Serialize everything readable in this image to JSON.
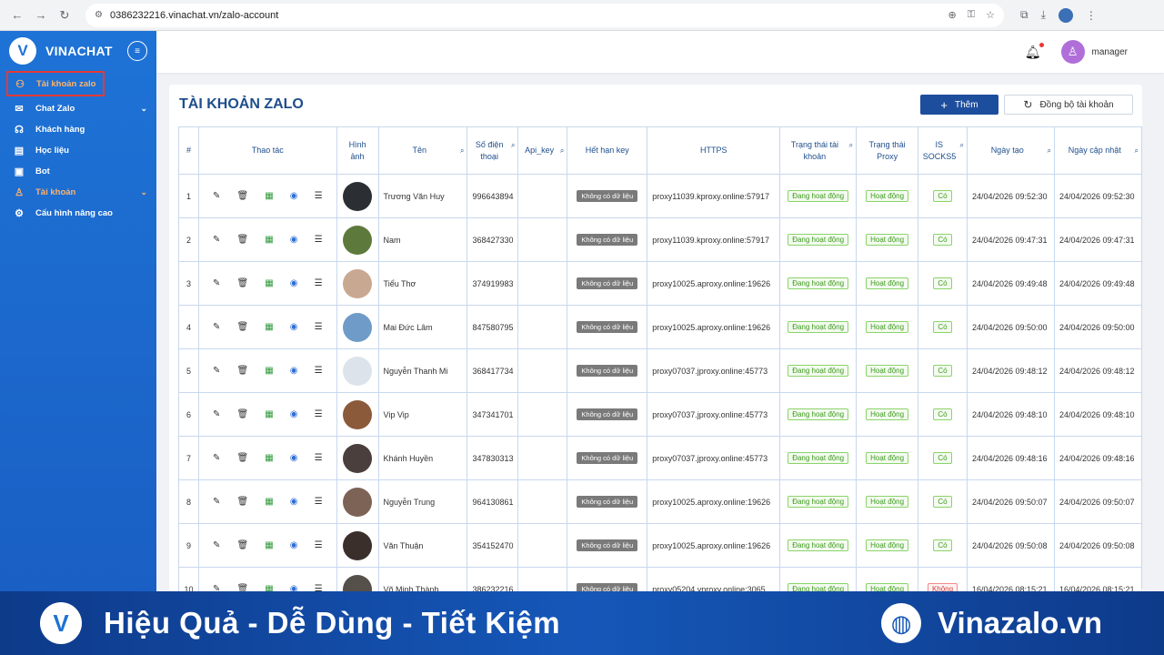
{
  "browser": {
    "url": "0386232216.vinachat.vn/zalo-account"
  },
  "sidebar": {
    "brand": "VINACHAT",
    "items": [
      {
        "label": "Tài khoản zalo",
        "icon": "user-group-icon"
      },
      {
        "label": "Chat Zalo",
        "icon": "chat-icon"
      },
      {
        "label": "Khách hàng",
        "icon": "headset-icon"
      },
      {
        "label": "Học liệu",
        "icon": "document-icon"
      },
      {
        "label": "Bot",
        "icon": "bot-icon"
      },
      {
        "label": "Tài khoản",
        "icon": "user-icon"
      },
      {
        "label": "Cấu hình nâng cao",
        "icon": "gear-icon"
      }
    ]
  },
  "header": {
    "user_name": "manager"
  },
  "page": {
    "title": "TÀI KHOẢN ZALO",
    "add_label": "Thêm",
    "sync_label": "Đồng bộ tài khoản"
  },
  "table": {
    "columns": [
      "#",
      "Thao tác",
      "Hình ảnh",
      "Tên",
      "Số điện thoại",
      "Api_key",
      "Hết hạn key",
      "HTTPS",
      "Trạng thái tài khoản",
      "Trạng thái Proxy",
      "IS SOCKS5",
      "Ngày tạo",
      "Ngày cập nhật"
    ],
    "rows": [
      {
        "no": "1",
        "name": "Trương Văn Huy",
        "phone": "996643894",
        "api_key": "",
        "key_expiry": "Không có dữ liệu",
        "https": "proxy11039.kproxy.online:57917",
        "account_status": "Đang hoạt động",
        "proxy_status": "Hoạt động",
        "socks5": "Có",
        "created": "24/04/2026 09:52:30",
        "updated": "24/04/2026 09:52:30",
        "avatar_color": "#2b2f33"
      },
      {
        "no": "2",
        "name": "Nam",
        "phone": "368427330",
        "api_key": "",
        "key_expiry": "Không có dữ liệu",
        "https": "proxy11039.kproxy.online:57917",
        "account_status": "Đang hoạt động",
        "proxy_status": "Hoạt động",
        "socks5": "Có",
        "created": "24/04/2026 09:47:31",
        "updated": "24/04/2026 09:47:31",
        "avatar_color": "#5d7a3c"
      },
      {
        "no": "3",
        "name": "Tiểu Thơ",
        "phone": "374919983",
        "api_key": "",
        "key_expiry": "Không có dữ liệu",
        "https": "proxy10025.aproxy.online:19626",
        "account_status": "Đang hoạt động",
        "proxy_status": "Hoạt động",
        "socks5": "Có",
        "created": "24/04/2026 09:49:48",
        "updated": "24/04/2026 09:49:48",
        "avatar_color": "#c9a892"
      },
      {
        "no": "4",
        "name": "Mai Đức Lâm",
        "phone": "847580795",
        "api_key": "",
        "key_expiry": "Không có dữ liệu",
        "https": "proxy10025.aproxy.online:19626",
        "account_status": "Đang hoạt động",
        "proxy_status": "Hoạt động",
        "socks5": "Có",
        "created": "24/04/2026 09:50:00",
        "updated": "24/04/2026 09:50:00",
        "avatar_color": "#6f9bc8"
      },
      {
        "no": "5",
        "name": "Nguyễn Thanh Mi",
        "phone": "368417734",
        "api_key": "",
        "key_expiry": "Không có dữ liệu",
        "https": "proxy07037.jproxy.online:45773",
        "account_status": "Đang hoạt động",
        "proxy_status": "Hoạt động",
        "socks5": "Có",
        "created": "24/04/2026 09:48:12",
        "updated": "24/04/2026 09:48:12",
        "avatar_color": "#dde3ea"
      },
      {
        "no": "6",
        "name": "Vip Vip",
        "phone": "347341701",
        "api_key": "",
        "key_expiry": "Không có dữ liệu",
        "https": "proxy07037.jproxy.online:45773",
        "account_status": "Đang hoạt động",
        "proxy_status": "Hoạt động",
        "socks5": "Có",
        "created": "24/04/2026 09:48:10",
        "updated": "24/04/2026 09:48:10",
        "avatar_color": "#8a5a3a"
      },
      {
        "no": "7",
        "name": "Khánh Huyền",
        "phone": "347830313",
        "api_key": "",
        "key_expiry": "Không có dữ liệu",
        "https": "proxy07037.jproxy.online:45773",
        "account_status": "Đang hoạt động",
        "proxy_status": "Hoạt động",
        "socks5": "Có",
        "created": "24/04/2026 09:48:16",
        "updated": "24/04/2026 09:48:16",
        "avatar_color": "#4a3f3c"
      },
      {
        "no": "8",
        "name": "Nguyễn Trung",
        "phone": "964130861",
        "api_key": "",
        "key_expiry": "Không có dữ liệu",
        "https": "proxy10025.aproxy.online:19626",
        "account_status": "Đang hoạt động",
        "proxy_status": "Hoạt động",
        "socks5": "Có",
        "created": "24/04/2026 09:50:07",
        "updated": "24/04/2026 09:50:07",
        "avatar_color": "#7c6356"
      },
      {
        "no": "9",
        "name": "Văn Thuận",
        "phone": "354152470",
        "api_key": "",
        "key_expiry": "Không có dữ liệu",
        "https": "proxy10025.aproxy.online:19626",
        "account_status": "Đang hoạt động",
        "proxy_status": "Hoạt động",
        "socks5": "Có",
        "created": "24/04/2026 09:50:08",
        "updated": "24/04/2026 09:50:08",
        "avatar_color": "#3a2f2b"
      },
      {
        "no": "10",
        "name": "Võ Minh Thành",
        "phone": "386232216",
        "api_key": "",
        "key_expiry": "Không có dữ liệu",
        "https": "proxy05204.vproxy.online:3065",
        "account_status": "Đang hoạt động",
        "proxy_status": "Hoạt động",
        "socks5": "Không",
        "created": "16/04/2026 08:15:21",
        "updated": "16/04/2026 08:15:21",
        "avatar_color": "#55504a"
      }
    ]
  },
  "banner": {
    "slogan": "Hiệu Quả - Dễ Dùng - Tiết Kiệm",
    "site": "Vinazalo.vn"
  }
}
